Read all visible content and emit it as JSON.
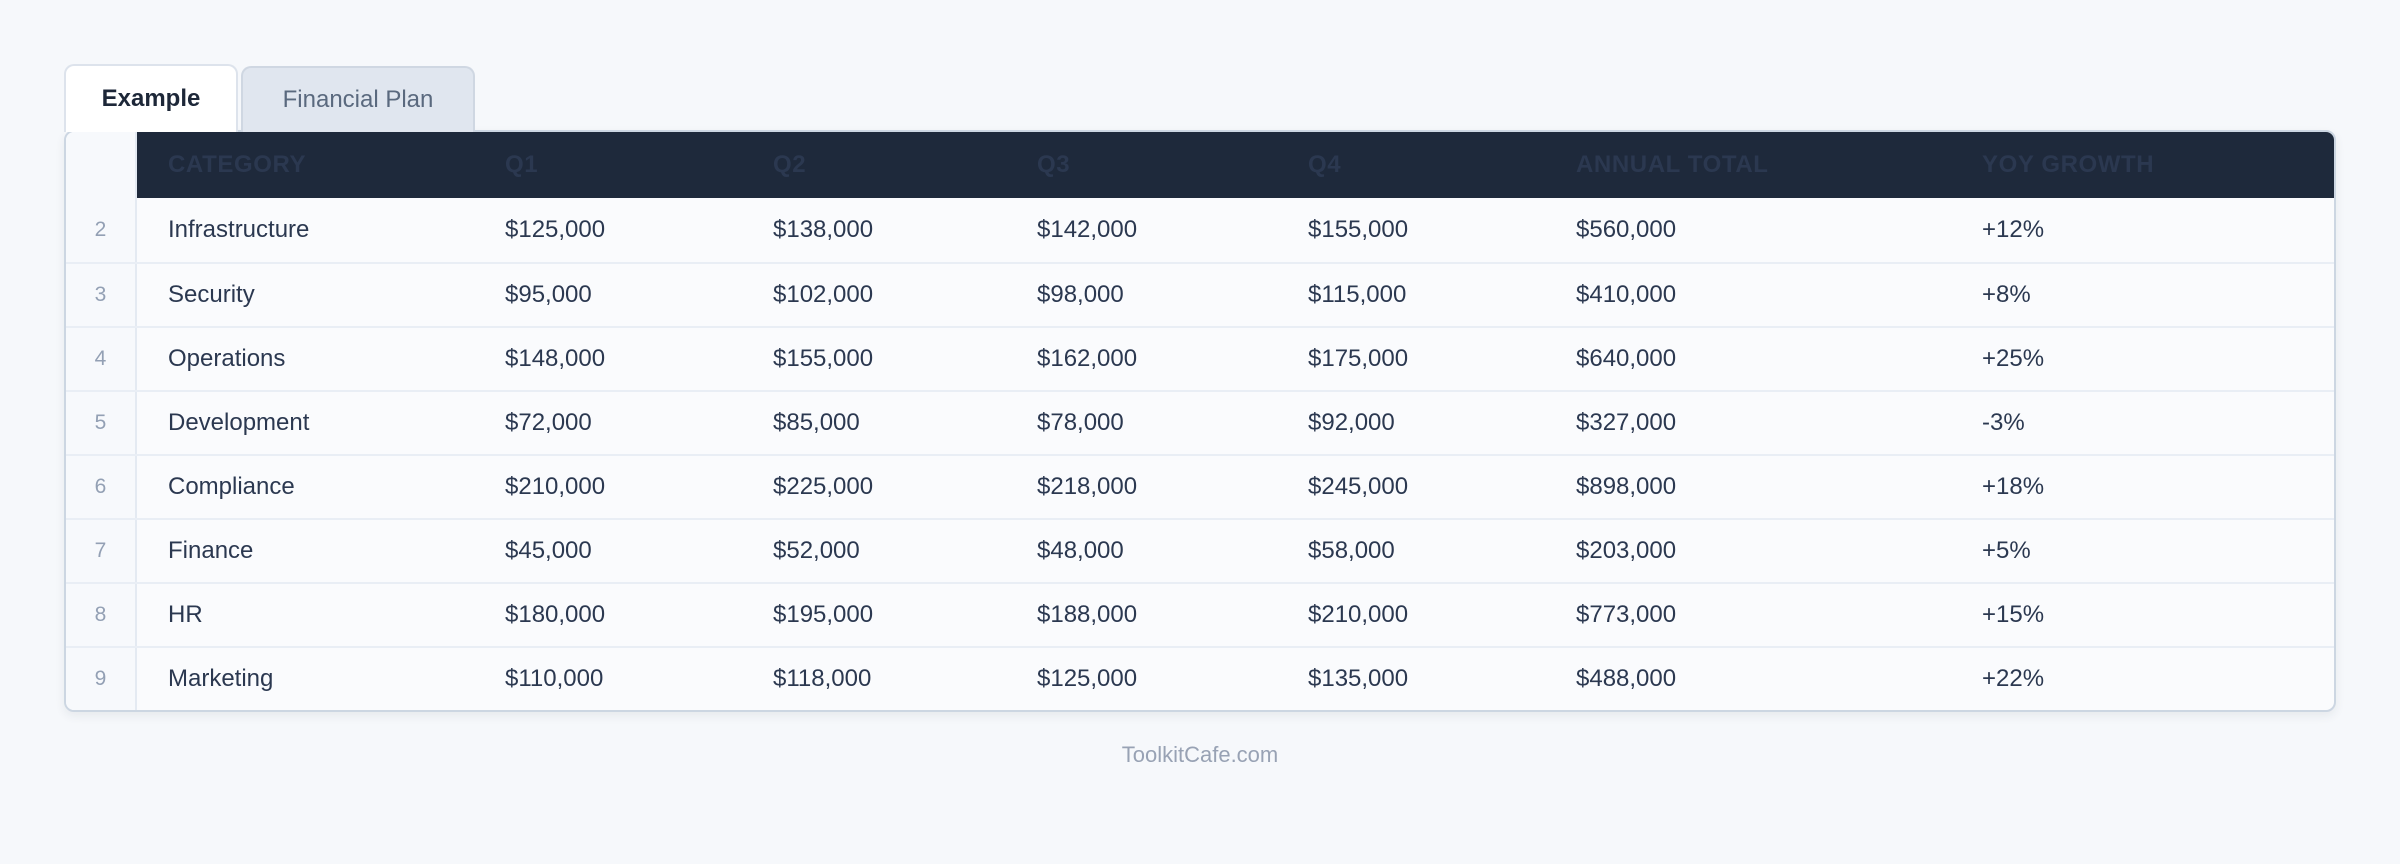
{
  "tabs": [
    {
      "label": "Example",
      "active": true
    },
    {
      "label": "Financial Plan",
      "active": false
    }
  ],
  "table": {
    "columns": [
      "CATEGORY",
      "Q1",
      "Q2",
      "Q3",
      "Q4",
      "ANNUAL TOTAL",
      "YOY GROWTH"
    ],
    "rows": [
      {
        "num": "2",
        "cells": [
          "Infrastructure",
          "$125,000",
          "$138,000",
          "$142,000",
          "$155,000",
          "$560,000",
          "+12%"
        ]
      },
      {
        "num": "3",
        "cells": [
          "Security",
          "$95,000",
          "$102,000",
          "$98,000",
          "$115,000",
          "$410,000",
          "+8%"
        ]
      },
      {
        "num": "4",
        "cells": [
          "Operations",
          "$148,000",
          "$155,000",
          "$162,000",
          "$175,000",
          "$640,000",
          "+25%"
        ]
      },
      {
        "num": "5",
        "cells": [
          "Development",
          "$72,000",
          "$85,000",
          "$78,000",
          "$92,000",
          "$327,000",
          "-3%"
        ]
      },
      {
        "num": "6",
        "cells": [
          "Compliance",
          "$210,000",
          "$225,000",
          "$218,000",
          "$245,000",
          "$898,000",
          "+18%"
        ]
      },
      {
        "num": "7",
        "cells": [
          "Finance",
          "$45,000",
          "$52,000",
          "$48,000",
          "$58,000",
          "$203,000",
          "+5%"
        ]
      },
      {
        "num": "8",
        "cells": [
          "HR",
          "$180,000",
          "$195,000",
          "$188,000",
          "$210,000",
          "$773,000",
          "+15%"
        ]
      },
      {
        "num": "9",
        "cells": [
          "Marketing",
          "$110,000",
          "$118,000",
          "$125,000",
          "$135,000",
          "$488,000",
          "+22%"
        ]
      }
    ]
  },
  "footer": {
    "text": "ToolkitCafe.com"
  },
  "colors": {
    "header_bg": "#1e293b",
    "header_text": "#ffffff",
    "cell_text": "#2b3850",
    "row_number": "#93a0b4",
    "divider": "#e9eef5",
    "card_bg": "#fafbfd",
    "card_border": "#ccd6e2",
    "gutter_bg": "#f7f9fc",
    "gutter_border": "#e4eaf2",
    "active_tab_bg": "#ffffff",
    "active_tab_text": "#1d2738",
    "inactive_tab_bg": "#e0e6ef",
    "inactive_tab_text": "#5a697e",
    "page_bg": "#f6f8fb",
    "footer_text": "#98a2b4"
  }
}
